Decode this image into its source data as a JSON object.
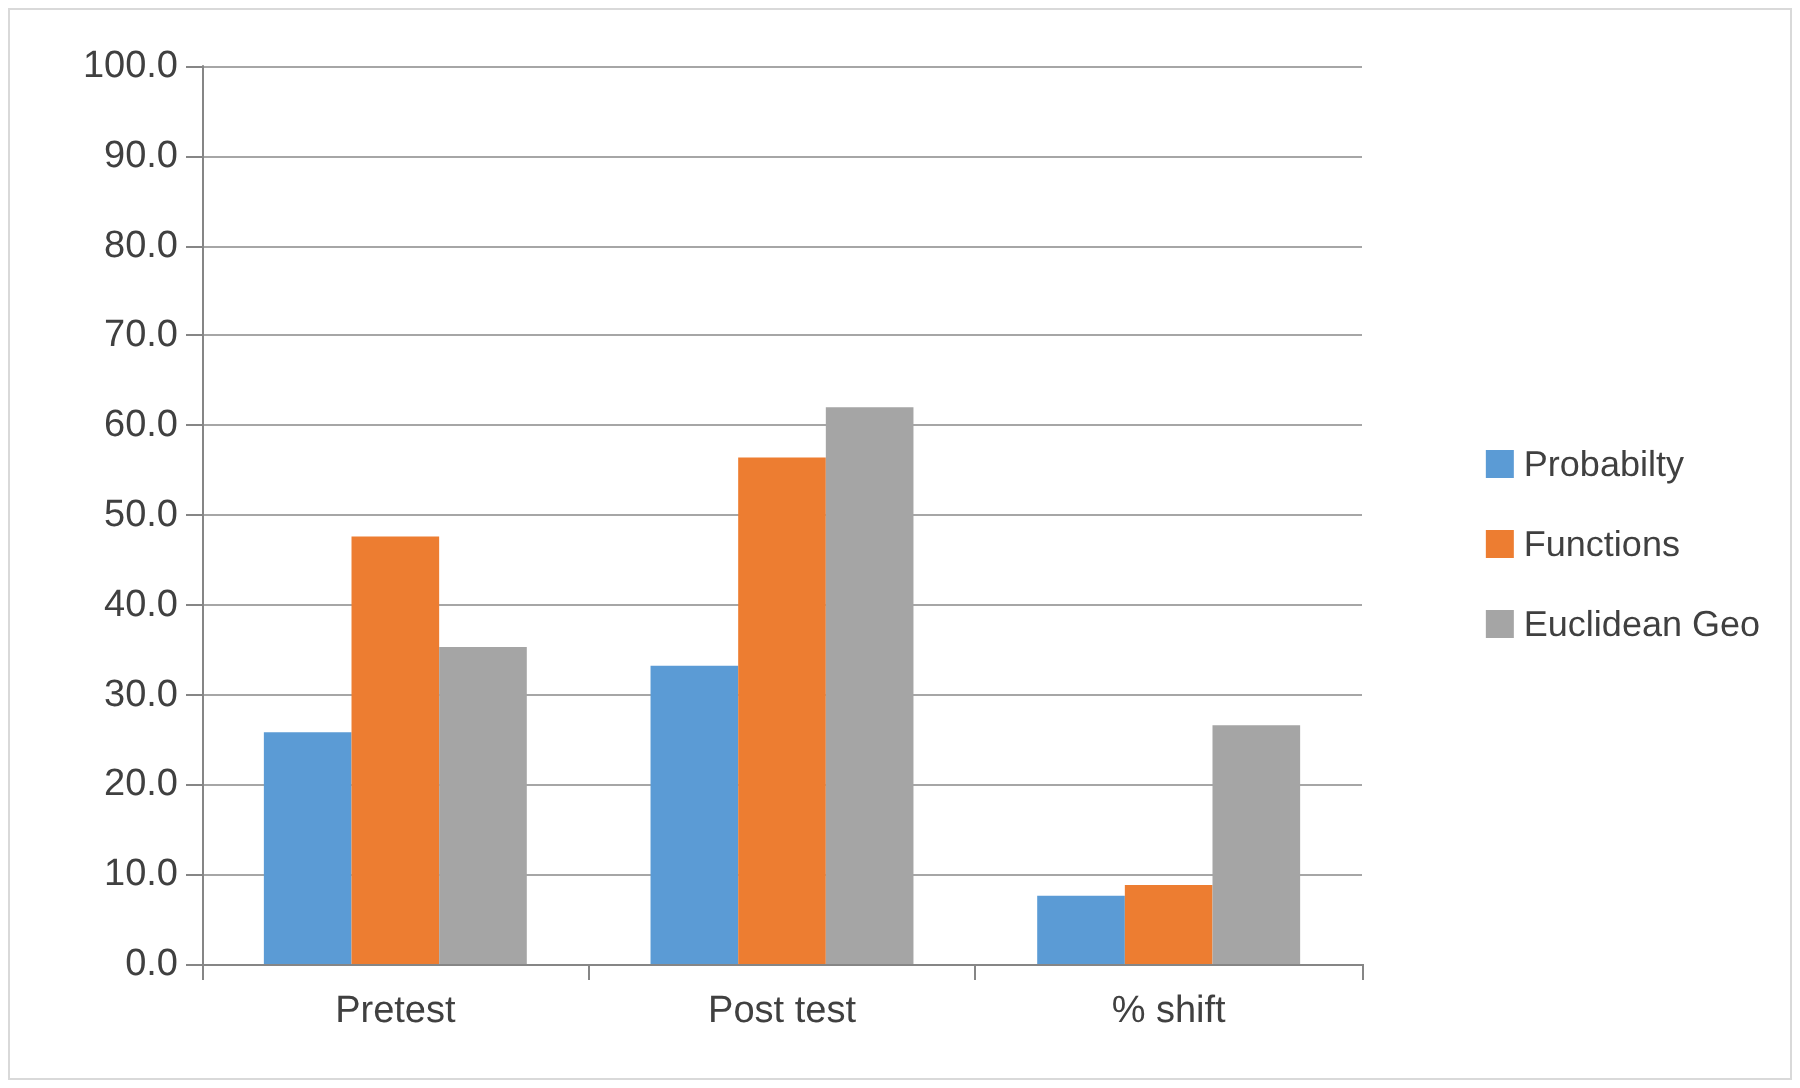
{
  "chart_data": {
    "type": "bar",
    "categories": [
      "Pretest",
      "Post test",
      "% shift"
    ],
    "series": [
      {
        "name": "Probabilty",
        "color": "#5b9bd5",
        "values": [
          25.8,
          33.2,
          7.6
        ]
      },
      {
        "name": "Functions",
        "color": "#ed7d31",
        "values": [
          47.6,
          56.4,
          8.8
        ]
      },
      {
        "name": "Euclidean Geo",
        "color": "#a5a5a5",
        "values": [
          35.3,
          62.0,
          26.6
        ]
      }
    ],
    "ylim": [
      0,
      100
    ],
    "yticks": [
      {
        "value": 0,
        "label": "0.0"
      },
      {
        "value": 10,
        "label": "10.0"
      },
      {
        "value": 20,
        "label": "20.0"
      },
      {
        "value": 30,
        "label": "30.0"
      },
      {
        "value": 40,
        "label": "40.0"
      },
      {
        "value": 50,
        "label": "50.0"
      },
      {
        "value": 60,
        "label": "60.0"
      },
      {
        "value": 70,
        "label": "70.0"
      },
      {
        "value": 80,
        "label": "80.0"
      },
      {
        "value": 90,
        "label": "90.0"
      },
      {
        "value": 100,
        "label": "100.0"
      }
    ],
    "grid": "y",
    "legend": "right"
  }
}
